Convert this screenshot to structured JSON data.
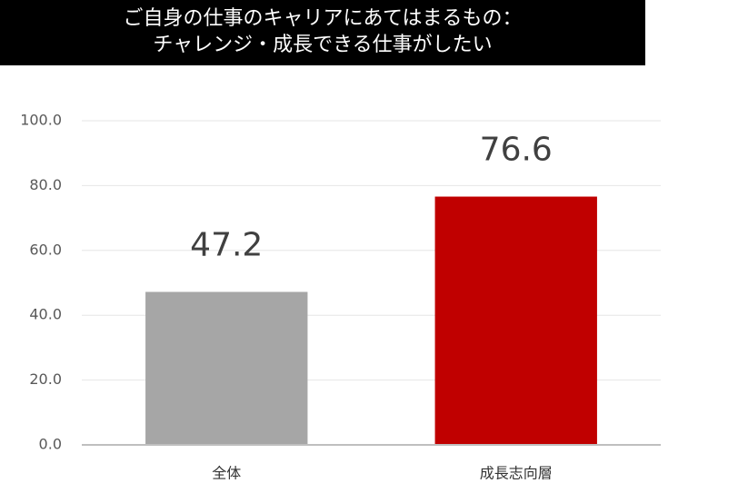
{
  "chart_data": {
    "type": "bar",
    "title": [
      "ご自身の仕事のキャリアにあてはまるもの：",
      "チャレンジ・成長できる仕事がしたい"
    ],
    "categories": [
      "全体",
      "成長志向層"
    ],
    "values": [
      47.2,
      76.6
    ],
    "colors": [
      "#a6a6a6",
      "#c00000"
    ],
    "ylim": [
      0,
      100
    ],
    "yticks": [
      {
        "value": 0,
        "label": "0.0"
      },
      {
        "value": 20,
        "label": "20.0"
      },
      {
        "value": 40,
        "label": "40.0"
      },
      {
        "value": 60,
        "label": "60.0"
      },
      {
        "value": 80,
        "label": "80.0"
      },
      {
        "value": 100,
        "label": "100.0"
      }
    ],
    "grid": true
  }
}
